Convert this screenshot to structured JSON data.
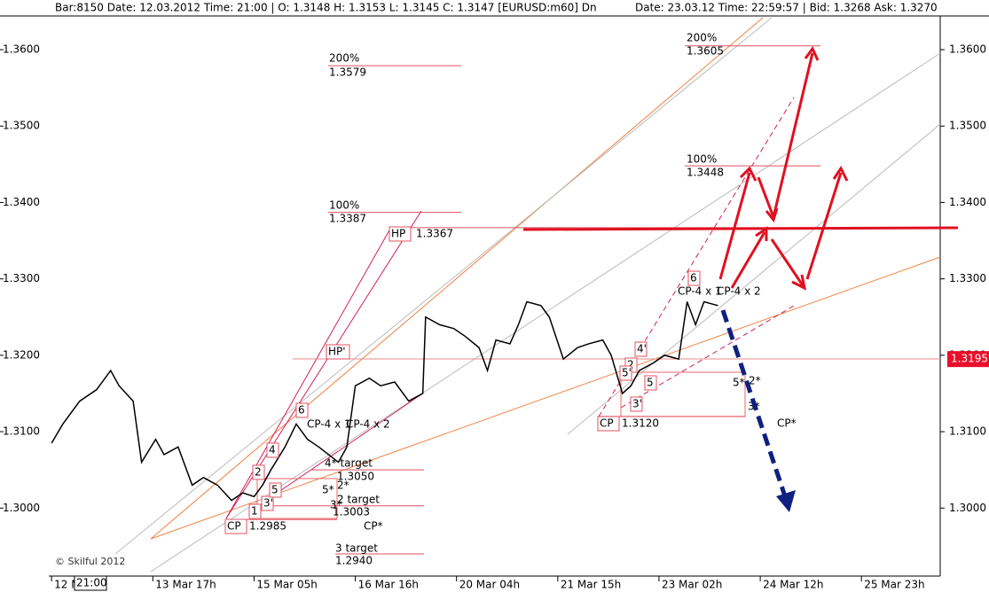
{
  "chart_data": {
    "type": "line",
    "header_left": "Bar:8150  Date: 12.03.2012  Time: 21:00 | O: 1.3148 H: 1.3153 L: 1.3145 C: 1.3147  [EURUSD:m60] Dn",
    "header_right": "Date: 23.03.12  Time: 22:59:57 | Bid: 1.3268 Ask: 1.3270",
    "series": [
      {
        "color": "#000000",
        "x": [
          0,
          4,
          10,
          16,
          21,
          24,
          29,
          32,
          37,
          40,
          45,
          50,
          54,
          59,
          64,
          68,
          72,
          75,
          78,
          83,
          87,
          91,
          95,
          102,
          105,
          108,
          113,
          117,
          122,
          127,
          132,
          133,
          138,
          143,
          147,
          152,
          155,
          158,
          163,
          166,
          169,
          174,
          177,
          182,
          187,
          191,
          196,
          199,
          203,
          206,
          209,
          214,
          218,
          223,
          226,
          229,
          232,
          237
        ],
        "values": [
          1.3085,
          1.311,
          1.314,
          1.3155,
          1.318,
          1.316,
          1.314,
          1.306,
          1.309,
          1.307,
          1.308,
          1.303,
          1.304,
          1.303,
          1.301,
          1.302,
          1.3015,
          1.303,
          1.305,
          1.308,
          1.311,
          1.309,
          1.308,
          1.306,
          1.308,
          1.316,
          1.317,
          1.316,
          1.3165,
          1.314,
          1.315,
          1.325,
          1.324,
          1.3235,
          1.3225,
          1.321,
          1.318,
          1.322,
          1.3215,
          1.324,
          1.327,
          1.3265,
          1.325,
          1.3195,
          1.321,
          1.3215,
          1.322,
          1.32,
          1.315,
          1.316,
          1.318,
          1.319,
          1.32,
          1.3195,
          1.327,
          1.324,
          1.327,
          1.3265
        ]
      }
    ],
    "xlim": [
      -1,
      316
    ],
    "xticks": [
      {
        "value": 0,
        "label": "12 M"
      },
      {
        "value": 36,
        "label": "13 Mar 17h"
      },
      {
        "value": 72,
        "label": "15 Mar 05h"
      },
      {
        "value": 108,
        "label": "16 Mar 16h"
      },
      {
        "value": 144,
        "label": "20 Mar 04h"
      },
      {
        "value": 180,
        "label": "21 Mar 15h"
      },
      {
        "value": 216,
        "label": "23 Mar 02h"
      },
      {
        "value": 252,
        "label": "24 Mar 12h"
      },
      {
        "value": 288,
        "label": "25 Mar 23h"
      }
    ],
    "ylim": [
      1.2911,
      1.3665
    ],
    "yticks": [
      {
        "value": 1.3,
        "label": "1.3000"
      },
      {
        "value": 1.31,
        "label": "1.3100"
      },
      {
        "value": 1.32,
        "label": "1.3200"
      },
      {
        "value": 1.33,
        "label": "1.3300"
      },
      {
        "value": 1.34,
        "label": "1.3400"
      },
      {
        "value": 1.35,
        "label": "1.3500"
      },
      {
        "value": 1.36,
        "label": "1.3600"
      }
    ],
    "current_price": {
      "value": 1.3195,
      "label": "1.3195"
    },
    "levels": [
      {
        "label": "200%",
        "price": {
          "value": 1.3579,
          "label": "1.3579"
        }
      },
      {
        "label": "100%",
        "price": {
          "value": 1.3387,
          "label": "1.3387"
        }
      },
      {
        "label": "200%",
        "price": {
          "value": 1.3605,
          "label": "1.3605"
        }
      },
      {
        "label": "100%",
        "price": {
          "value": 1.3448,
          "label": "1.3448"
        }
      },
      {
        "label": "HP",
        "price": {
          "value": 1.3367,
          "label": "1.3367"
        }
      },
      {
        "label": "CP",
        "price": {
          "value": 1.2985,
          "label": "1.2985"
        }
      },
      {
        "label": "CP",
        "price": {
          "value": 1.312,
          "label": "1.3120"
        }
      },
      {
        "label": "4* target",
        "price": {
          "value": 1.305,
          "label": "1.3050"
        }
      },
      {
        "label": "2 target",
        "price": {
          "value": 1.3003,
          "label": "1.3003"
        }
      },
      {
        "label": "3 target",
        "price": {
          "value": 1.294,
          "label": "1.2940"
        }
      }
    ],
    "annotations": [
      "CP-4 x 1",
      "CP-4 x 2",
      "CP-4 x 1",
      "CP-4 x 2",
      "CP*",
      "CP*",
      "1",
      "2",
      "3'",
      "4",
      "5",
      "6",
      "5*",
      "2*",
      "3*",
      "4'",
      "2",
      "5'",
      "3'",
      "5",
      "6",
      "5*",
      "2*",
      "3*",
      "HP'",
      "© Skilful 2012",
      "21:00"
    ]
  }
}
